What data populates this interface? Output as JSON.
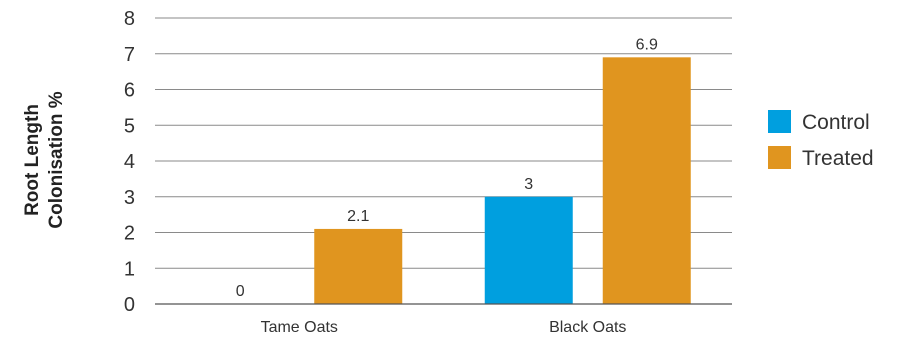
{
  "chart_data": {
    "type": "bar",
    "categories": [
      "Tame Oats",
      "Black Oats"
    ],
    "series": [
      {
        "name": "Control",
        "values": [
          0,
          3
        ],
        "color": "#009fdf"
      },
      {
        "name": "Treated",
        "values": [
          2.1,
          6.9
        ],
        "color": "#e0951f"
      }
    ],
    "ylabel_lines": [
      "Root Length",
      "Colonisation %"
    ],
    "xlabel": "",
    "ylim": [
      0,
      8
    ],
    "yticks": [
      0,
      1,
      2,
      3,
      4,
      5,
      6,
      7,
      8
    ],
    "gridlines": true,
    "legend_position": "right",
    "data_labels": true
  }
}
